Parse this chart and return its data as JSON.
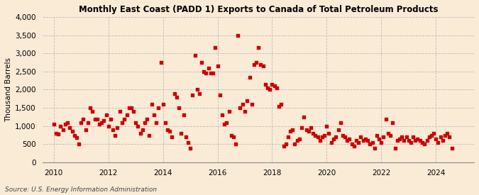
{
  "title": "Monthly East Coast (PADD 1) Exports to Canada of Total Petroleum Products",
  "ylabel": "Thousand Barrels",
  "source": "Source: U.S. Energy Information Administration",
  "background_color": "#faebd7",
  "marker_color": "#cc0000",
  "ylim": [
    0,
    4000
  ],
  "yticks": [
    0,
    500,
    1000,
    1500,
    2000,
    2500,
    3000,
    3500,
    4000
  ],
  "xticks": [
    2010,
    2012,
    2014,
    2016,
    2018,
    2020,
    2022,
    2024
  ],
  "xlim_start": 2009.6,
  "xlim_end": 2025.4,
  "data": [
    [
      2010.0,
      1050
    ],
    [
      2010.08,
      800
    ],
    [
      2010.17,
      780
    ],
    [
      2010.25,
      1000
    ],
    [
      2010.33,
      900
    ],
    [
      2010.42,
      1050
    ],
    [
      2010.5,
      1100
    ],
    [
      2010.58,
      950
    ],
    [
      2010.67,
      850
    ],
    [
      2010.75,
      750
    ],
    [
      2010.83,
      680
    ],
    [
      2010.92,
      500
    ],
    [
      2011.0,
      1100
    ],
    [
      2011.08,
      1200
    ],
    [
      2011.17,
      900
    ],
    [
      2011.25,
      1100
    ],
    [
      2011.33,
      1500
    ],
    [
      2011.42,
      1400
    ],
    [
      2011.5,
      1200
    ],
    [
      2011.58,
      1200
    ],
    [
      2011.67,
      1050
    ],
    [
      2011.75,
      1100
    ],
    [
      2011.83,
      1150
    ],
    [
      2011.92,
      1300
    ],
    [
      2012.0,
      1000
    ],
    [
      2012.08,
      1200
    ],
    [
      2012.17,
      900
    ],
    [
      2012.25,
      750
    ],
    [
      2012.33,
      950
    ],
    [
      2012.42,
      1400
    ],
    [
      2012.5,
      1100
    ],
    [
      2012.58,
      1200
    ],
    [
      2012.67,
      1300
    ],
    [
      2012.75,
      1500
    ],
    [
      2012.83,
      1500
    ],
    [
      2012.92,
      1400
    ],
    [
      2013.0,
      1100
    ],
    [
      2013.08,
      1000
    ],
    [
      2013.17,
      800
    ],
    [
      2013.25,
      900
    ],
    [
      2013.33,
      1100
    ],
    [
      2013.42,
      1200
    ],
    [
      2013.5,
      750
    ],
    [
      2013.58,
      1600
    ],
    [
      2013.67,
      1300
    ],
    [
      2013.75,
      1100
    ],
    [
      2013.83,
      1500
    ],
    [
      2013.92,
      2750
    ],
    [
      2014.0,
      1600
    ],
    [
      2014.08,
      1100
    ],
    [
      2014.17,
      900
    ],
    [
      2014.25,
      850
    ],
    [
      2014.33,
      700
    ],
    [
      2014.42,
      1900
    ],
    [
      2014.5,
      1800
    ],
    [
      2014.58,
      1500
    ],
    [
      2014.67,
      800
    ],
    [
      2014.75,
      1300
    ],
    [
      2014.83,
      700
    ],
    [
      2014.92,
      550
    ],
    [
      2015.0,
      400
    ],
    [
      2015.08,
      1850
    ],
    [
      2015.17,
      2950
    ],
    [
      2015.25,
      2000
    ],
    [
      2015.33,
      1900
    ],
    [
      2015.42,
      2750
    ],
    [
      2015.5,
      2500
    ],
    [
      2015.58,
      2450
    ],
    [
      2015.67,
      2600
    ],
    [
      2015.75,
      2450
    ],
    [
      2015.83,
      2450
    ],
    [
      2015.92,
      3150
    ],
    [
      2016.0,
      2650
    ],
    [
      2016.08,
      1850
    ],
    [
      2016.17,
      1300
    ],
    [
      2016.25,
      1050
    ],
    [
      2016.33,
      1100
    ],
    [
      2016.42,
      1400
    ],
    [
      2016.5,
      750
    ],
    [
      2016.58,
      700
    ],
    [
      2016.67,
      500
    ],
    [
      2016.75,
      3500
    ],
    [
      2016.83,
      1500
    ],
    [
      2016.92,
      1600
    ],
    [
      2017.0,
      1400
    ],
    [
      2017.08,
      1700
    ],
    [
      2017.17,
      2350
    ],
    [
      2017.25,
      1600
    ],
    [
      2017.33,
      2700
    ],
    [
      2017.42,
      2750
    ],
    [
      2017.5,
      3150
    ],
    [
      2017.58,
      2700
    ],
    [
      2017.67,
      2650
    ],
    [
      2017.75,
      2150
    ],
    [
      2017.83,
      2050
    ],
    [
      2017.92,
      2000
    ],
    [
      2018.0,
      2150
    ],
    [
      2018.08,
      2100
    ],
    [
      2018.17,
      2050
    ],
    [
      2018.25,
      1550
    ],
    [
      2018.33,
      1600
    ],
    [
      2018.42,
      450
    ],
    [
      2018.5,
      500
    ],
    [
      2018.58,
      700
    ],
    [
      2018.67,
      850
    ],
    [
      2018.75,
      900
    ],
    [
      2018.83,
      500
    ],
    [
      2018.92,
      600
    ],
    [
      2019.0,
      650
    ],
    [
      2019.08,
      950
    ],
    [
      2019.17,
      1250
    ],
    [
      2019.25,
      900
    ],
    [
      2019.33,
      850
    ],
    [
      2019.42,
      950
    ],
    [
      2019.5,
      800
    ],
    [
      2019.58,
      750
    ],
    [
      2019.67,
      700
    ],
    [
      2019.75,
      600
    ],
    [
      2019.83,
      700
    ],
    [
      2019.92,
      750
    ],
    [
      2020.0,
      1000
    ],
    [
      2020.08,
      800
    ],
    [
      2020.17,
      550
    ],
    [
      2020.25,
      650
    ],
    [
      2020.33,
      700
    ],
    [
      2020.42,
      900
    ],
    [
      2020.5,
      1100
    ],
    [
      2020.58,
      750
    ],
    [
      2020.67,
      700
    ],
    [
      2020.75,
      600
    ],
    [
      2020.83,
      650
    ],
    [
      2020.92,
      500
    ],
    [
      2021.0,
      450
    ],
    [
      2021.08,
      600
    ],
    [
      2021.17,
      550
    ],
    [
      2021.25,
      700
    ],
    [
      2021.33,
      600
    ],
    [
      2021.42,
      650
    ],
    [
      2021.5,
      600
    ],
    [
      2021.58,
      500
    ],
    [
      2021.67,
      550
    ],
    [
      2021.75,
      400
    ],
    [
      2021.83,
      750
    ],
    [
      2021.92,
      650
    ],
    [
      2022.0,
      550
    ],
    [
      2022.08,
      700
    ],
    [
      2022.17,
      1200
    ],
    [
      2022.25,
      800
    ],
    [
      2022.33,
      750
    ],
    [
      2022.42,
      1100
    ],
    [
      2022.5,
      400
    ],
    [
      2022.58,
      600
    ],
    [
      2022.67,
      650
    ],
    [
      2022.75,
      700
    ],
    [
      2022.83,
      600
    ],
    [
      2022.92,
      700
    ],
    [
      2023.0,
      600
    ],
    [
      2023.08,
      550
    ],
    [
      2023.17,
      700
    ],
    [
      2023.25,
      600
    ],
    [
      2023.33,
      650
    ],
    [
      2023.42,
      600
    ],
    [
      2023.5,
      550
    ],
    [
      2023.58,
      500
    ],
    [
      2023.67,
      600
    ],
    [
      2023.75,
      700
    ],
    [
      2023.83,
      750
    ],
    [
      2023.92,
      800
    ],
    [
      2024.0,
      650
    ],
    [
      2024.08,
      550
    ],
    [
      2024.17,
      700
    ],
    [
      2024.25,
      600
    ],
    [
      2024.33,
      750
    ],
    [
      2024.42,
      800
    ],
    [
      2024.5,
      700
    ],
    [
      2024.58,
      400
    ]
  ]
}
